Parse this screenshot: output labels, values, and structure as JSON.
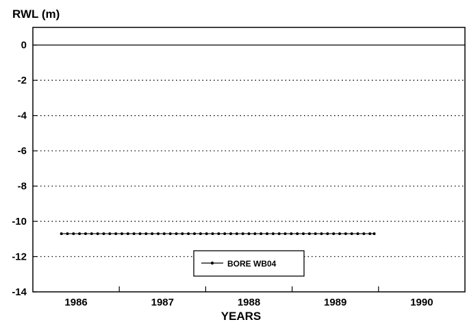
{
  "chart_data": {
    "type": "line",
    "ylabel": "RWL (m)",
    "xlabel": "YEARS",
    "ylim": [
      -14,
      1
    ],
    "xlim": [
      1985.5,
      1990.5
    ],
    "y_ticks": [
      0,
      -2,
      -4,
      -6,
      -8,
      -10,
      -12,
      -14
    ],
    "y_tick_labels": [
      "0",
      "-2",
      "-4",
      "-6",
      "-8",
      "-10",
      "-12",
      "-14"
    ],
    "x_tick_labels": [
      "1986",
      "1987",
      "1988",
      "1989",
      "1990"
    ],
    "x_label_centers": [
      1986,
      1987,
      1988,
      1989,
      1990
    ],
    "x_boundaries": [
      1986.5,
      1987.5,
      1988.5,
      1989.5
    ],
    "grid": "horizontal dotted",
    "legend_placement": "bottom-center",
    "series": [
      {
        "name": "BORE WB04",
        "color": "#000000",
        "x": [
          1985.83,
          1985.9,
          1985.97,
          1986.04,
          1986.11,
          1986.18,
          1986.25,
          1986.32,
          1986.39,
          1986.46,
          1986.53,
          1986.6,
          1986.67,
          1986.74,
          1986.81,
          1986.88,
          1986.95,
          1987.02,
          1987.09,
          1987.16,
          1987.23,
          1987.3,
          1987.37,
          1987.44,
          1987.51,
          1987.58,
          1987.65,
          1987.72,
          1987.79,
          1987.86,
          1987.93,
          1988.0,
          1988.07,
          1988.14,
          1988.21,
          1988.28,
          1988.35,
          1988.42,
          1988.49,
          1988.56,
          1988.63,
          1988.7,
          1988.77,
          1988.84,
          1988.91,
          1988.98,
          1989.05,
          1989.12,
          1989.19,
          1989.26,
          1989.33,
          1989.4,
          1989.45
        ],
        "y": [
          -10.7,
          -10.7,
          -10.7,
          -10.7,
          -10.7,
          -10.7,
          -10.7,
          -10.7,
          -10.7,
          -10.7,
          -10.7,
          -10.7,
          -10.7,
          -10.7,
          -10.7,
          -10.7,
          -10.7,
          -10.7,
          -10.7,
          -10.7,
          -10.7,
          -10.7,
          -10.7,
          -10.7,
          -10.7,
          -10.7,
          -10.7,
          -10.7,
          -10.7,
          -10.7,
          -10.7,
          -10.7,
          -10.7,
          -10.7,
          -10.7,
          -10.7,
          -10.7,
          -10.7,
          -10.7,
          -10.7,
          -10.7,
          -10.7,
          -10.7,
          -10.7,
          -10.7,
          -10.7,
          -10.7,
          -10.7,
          -10.7,
          -10.7,
          -10.7,
          -10.7,
          -10.7
        ]
      }
    ]
  }
}
